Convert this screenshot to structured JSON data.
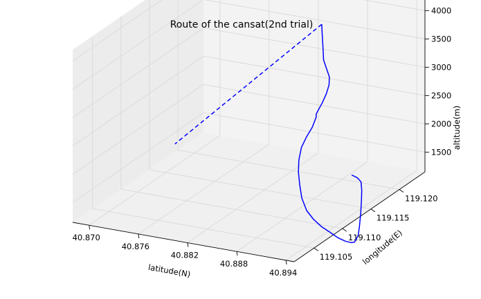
{
  "chart_data": {
    "type": "line3d",
    "title": "Route of the cansat(2nd trial)",
    "xlabel": "latitude(N)",
    "ylabel": "longitude(E)",
    "zlabel": "altitude(m)",
    "x_ticks": [
      "40.870",
      "40.876",
      "40.882",
      "40.888",
      "40.894"
    ],
    "y_ticks": [
      "119.105",
      "119.110",
      "119.115",
      "119.120"
    ],
    "z_ticks": [
      "1500",
      "2000",
      "2500",
      "3000",
      "3500",
      "4000"
    ],
    "grid": true,
    "colors": {
      "line": "#0000ff",
      "pane": "#f2f2f2",
      "grid": "#d9d9d9"
    },
    "series": [
      {
        "style": "solid",
        "points": [
          {
            "x": 40.8914,
            "y": 119.1168,
            "z": 1535
          },
          {
            "x": 40.8918,
            "y": 119.1172,
            "z": 1470
          },
          {
            "x": 40.8922,
            "y": 119.1173,
            "z": 1400
          },
          {
            "x": 40.8925,
            "y": 119.117,
            "z": 1280
          },
          {
            "x": 40.8928,
            "y": 119.1165,
            "z": 1130
          },
          {
            "x": 40.8932,
            "y": 119.1158,
            "z": 970
          },
          {
            "x": 40.8936,
            "y": 119.115,
            "z": 800
          },
          {
            "x": 40.8938,
            "y": 119.1145,
            "z": 690
          },
          {
            "x": 40.8937,
            "y": 119.114,
            "z": 600
          },
          {
            "x": 40.8933,
            "y": 119.1139,
            "z": 590
          },
          {
            "x": 40.893,
            "y": 119.1134,
            "z": 640
          },
          {
            "x": 40.8925,
            "y": 119.1128,
            "z": 730
          },
          {
            "x": 40.892,
            "y": 119.1122,
            "z": 850
          },
          {
            "x": 40.8912,
            "y": 119.1118,
            "z": 960
          },
          {
            "x": 40.8905,
            "y": 119.1114,
            "z": 1100
          },
          {
            "x": 40.8898,
            "y": 119.1112,
            "z": 1250
          },
          {
            "x": 40.889,
            "y": 119.1115,
            "z": 1430
          },
          {
            "x": 40.8884,
            "y": 119.112,
            "z": 1610
          },
          {
            "x": 40.8879,
            "y": 119.1125,
            "z": 1790
          },
          {
            "x": 40.8876,
            "y": 119.113,
            "z": 1960
          },
          {
            "x": 40.8875,
            "y": 119.1136,
            "z": 2140
          },
          {
            "x": 40.8877,
            "y": 119.1142,
            "z": 2290
          },
          {
            "x": 40.888,
            "y": 119.1148,
            "z": 2430
          },
          {
            "x": 40.8882,
            "y": 119.1152,
            "z": 2590
          },
          {
            "x": 40.8881,
            "y": 119.1153,
            "z": 2620
          },
          {
            "x": 40.8882,
            "y": 119.1155,
            "z": 2680
          },
          {
            "x": 40.8885,
            "y": 119.1158,
            "z": 2800
          },
          {
            "x": 40.8888,
            "y": 119.1161,
            "z": 2950
          },
          {
            "x": 40.889,
            "y": 119.1163,
            "z": 3100
          },
          {
            "x": 40.8891,
            "y": 119.1162,
            "z": 3250
          },
          {
            "x": 40.8889,
            "y": 119.116,
            "z": 3400
          },
          {
            "x": 40.8886,
            "y": 119.1159,
            "z": 3560
          },
          {
            "x": 40.8884,
            "y": 119.1161,
            "z": 3730
          },
          {
            "x": 40.8882,
            "y": 119.1163,
            "z": 3880
          },
          {
            "x": 40.888,
            "y": 119.1165,
            "z": 4010
          },
          {
            "x": 40.8879,
            "y": 119.1166,
            "z": 4120
          }
        ]
      },
      {
        "style": "dashed",
        "points": [
          {
            "x": 40.8879,
            "y": 119.1166,
            "z": 4120
          },
          {
            "x": 40.87,
            "y": 119.1166,
            "z": 1545
          }
        ]
      }
    ]
  }
}
